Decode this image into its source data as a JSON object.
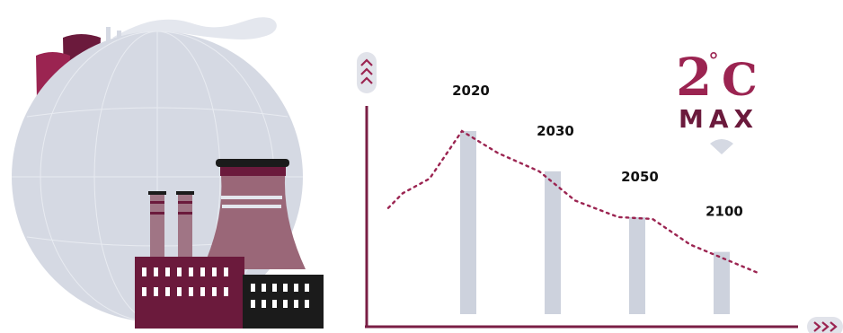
{
  "colors": {
    "accent": "#9b2451",
    "maroon": "#6b1a3c",
    "dark": "#1b1b1b",
    "globe": "#d5d9e3",
    "bar": "#cdd2dd",
    "axis": "#7a1f45"
  },
  "badge": {
    "number": "2",
    "degree": "°",
    "unit": "C",
    "word": "MAX",
    "icon": "wifi-signal-icon"
  },
  "illustration": {
    "icons": [
      "globe-icon",
      "factory-icon",
      "cooling-tower-icon",
      "smoke-icon"
    ]
  },
  "chart_data": {
    "type": "bar",
    "categories": [
      "2020",
      "2030",
      "2050",
      "2100"
    ],
    "values": [
      100,
      78,
      53,
      34
    ],
    "trend_line": {
      "style": "dotted",
      "y": [
        58,
        66,
        74,
        100,
        88,
        78,
        62,
        53,
        52,
        38,
        22
      ]
    },
    "title": "",
    "xlabel": "",
    "ylabel": "",
    "ylim": [
      0,
      125
    ],
    "grid": false,
    "legend": "none"
  }
}
